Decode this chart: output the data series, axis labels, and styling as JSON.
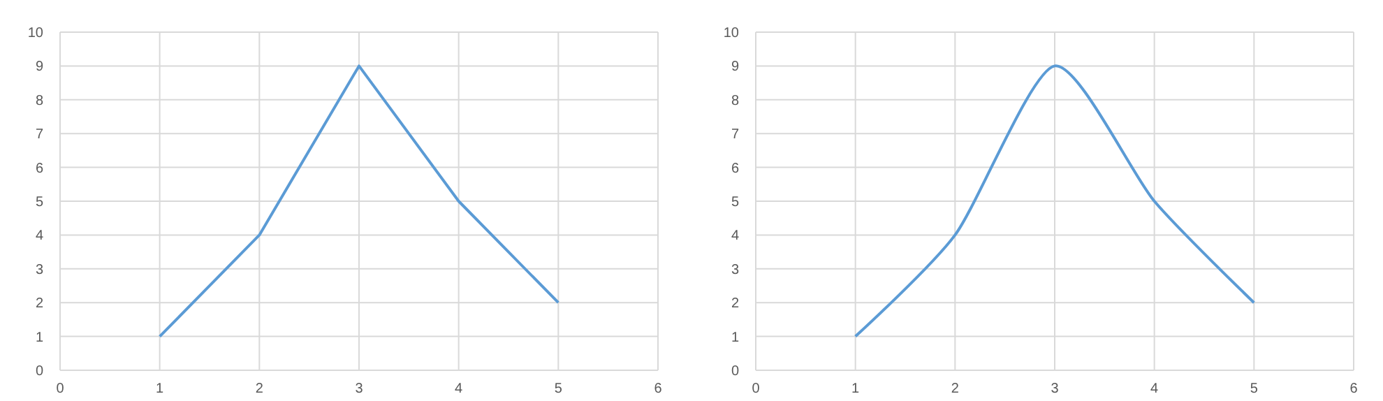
{
  "chart_data": [
    {
      "type": "line",
      "x": [
        1,
        2,
        3,
        4,
        5
      ],
      "series": [
        {
          "color": "#5b9bd5",
          "values": [
            1,
            4,
            9,
            5,
            2
          ]
        }
      ],
      "xlim": [
        0,
        6
      ],
      "xticks": [
        0,
        1,
        2,
        3,
        4,
        5,
        6
      ],
      "ylim": [
        0,
        10
      ],
      "yticks": [
        0,
        1,
        2,
        3,
        4,
        5,
        6,
        7,
        8,
        9,
        10
      ],
      "grid": true,
      "marker": "none",
      "line_style": "solid"
    },
    {
      "type": "line",
      "x": [
        1,
        2,
        3,
        4,
        5
      ],
      "series": [
        {
          "color": "#5b9bd5",
          "values": [
            1,
            4,
            9,
            5,
            2
          ]
        }
      ],
      "xlim": [
        0,
        6
      ],
      "xticks": [
        0,
        1,
        2,
        3,
        4,
        5,
        6
      ],
      "ylim": [
        0,
        10
      ],
      "yticks": [
        0,
        1,
        2,
        3,
        4,
        5,
        6,
        7,
        8,
        9,
        10
      ],
      "grid": true,
      "marker": "none",
      "line_style": "solid"
    }
  ]
}
